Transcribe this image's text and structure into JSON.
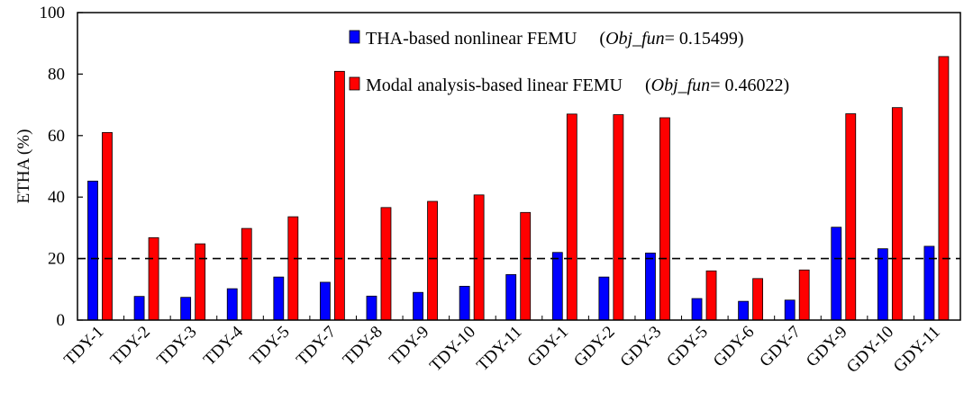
{
  "chart_data": {
    "type": "bar",
    "title": "",
    "xlabel": "",
    "ylabel": "ETHA (%)",
    "ylim": [
      0,
      100
    ],
    "yticks": [
      0,
      20,
      40,
      60,
      80,
      100
    ],
    "grid": false,
    "reference_line": {
      "y": 20,
      "style": "dashed"
    },
    "legend_position": "top-center",
    "categories": [
      "TDY-1",
      "TDY-2",
      "TDY-3",
      "TDY-4",
      "TDY-5",
      "TDY-7",
      "TDY-8",
      "TDY-9",
      "TDY-10",
      "TDY-11",
      "GDY-1",
      "GDY-2",
      "GDY-3",
      "GDY-5",
      "GDY-6",
      "GDY-7",
      "GDY-9",
      "GDY-10",
      "GDY-11"
    ],
    "series": [
      {
        "name": "THA-based nonlinear FEMU",
        "obj_label": "Obj_fun",
        "obj_value": "= 0.15499)",
        "color": "#0000ff",
        "values": [
          45.2,
          7.7,
          7.4,
          10.2,
          14.0,
          12.3,
          7.8,
          9.0,
          11.0,
          14.8,
          22.0,
          14.0,
          21.8,
          7.0,
          6.1,
          6.5,
          30.2,
          23.2,
          24.0
        ]
      },
      {
        "name": "Modal analysis-based linear FEMU",
        "obj_label": "Obj_fun",
        "obj_value": "= 0.46022)",
        "color": "#ff0000",
        "values": [
          61.0,
          26.8,
          24.8,
          29.8,
          33.6,
          80.9,
          36.6,
          38.6,
          40.7,
          35.0,
          67.0,
          66.8,
          65.8,
          16.0,
          13.5,
          16.3,
          67.1,
          69.1,
          85.7
        ]
      }
    ]
  }
}
